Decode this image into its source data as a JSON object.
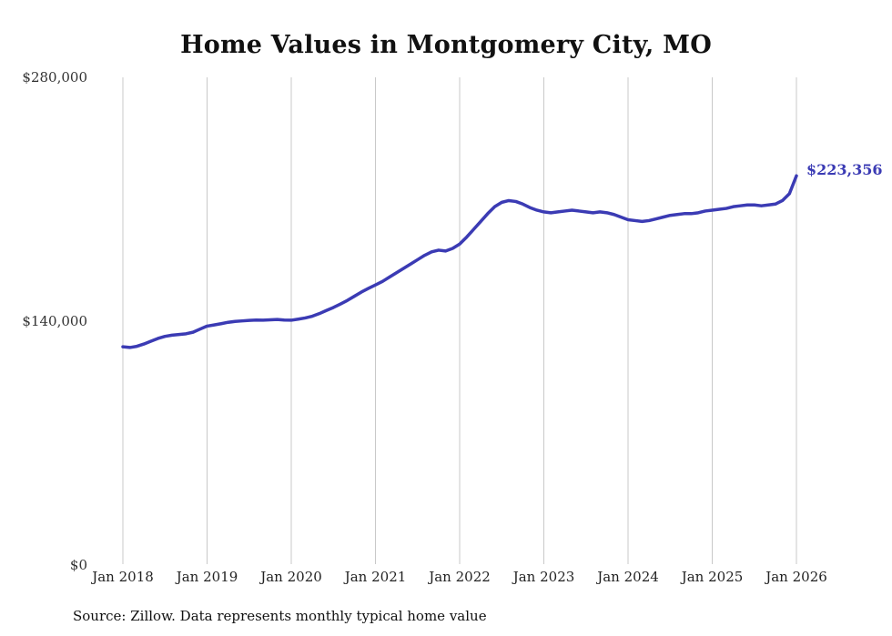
{
  "title": "Home Values in Montgomery City, MO",
  "source_note": "Source: Zillow. Data represents monthly typical home value",
  "colors": {
    "line": "#3b3bb4",
    "grid": "#c9c9c9",
    "axis_text": "#333333",
    "title_text": "#111111"
  },
  "chart_data": {
    "type": "line",
    "title": "Home Values in Montgomery City, MO",
    "xlabel": "",
    "ylabel": "",
    "ylim": [
      0,
      280000
    ],
    "grid": "vertical-only",
    "legend": "none",
    "x_tick_labels": [
      "Jan 2018",
      "Jan 2019",
      "Jan 2020",
      "Jan 2021",
      "Jan 2022",
      "Jan 2023",
      "Jan 2024",
      "Jan 2025",
      "Jan 2026"
    ],
    "y_ticks": [
      {
        "value": 0,
        "label": "$0"
      },
      {
        "value": 140000,
        "label": "$140,000"
      },
      {
        "value": 280000,
        "label": "$280,000"
      }
    ],
    "x_start": "Jan 2018",
    "x_end": "Jan 2026",
    "x_interval": "monthly",
    "last_value": 223356,
    "last_point_label": "$223,356",
    "series": [
      {
        "name": "Typical home value",
        "values": [
          125000,
          124600,
          125300,
          126600,
          128200,
          129800,
          131000,
          131700,
          132100,
          132500,
          133400,
          135200,
          136900,
          137600,
          138300,
          139100,
          139600,
          139900,
          140200,
          140400,
          140300,
          140500,
          140700,
          140400,
          140300,
          140900,
          141600,
          142600,
          144100,
          145900,
          147600,
          149600,
          151700,
          154100,
          156500,
          158600,
          160600,
          162600,
          165100,
          167600,
          170100,
          172600,
          175100,
          177600,
          179600,
          180600,
          180100,
          181600,
          184100,
          188100,
          192600,
          197100,
          201600,
          205600,
          208100,
          209100,
          208600,
          207100,
          205100,
          203600,
          202600,
          202100,
          202600,
          203100,
          203600,
          203100,
          202600,
          202100,
          202600,
          202100,
          201100,
          199600,
          198100,
          197600,
          197100,
          197600,
          198600,
          199600,
          200600,
          201100,
          201600,
          201600,
          202100,
          203100,
          203600,
          204100,
          204600,
          205600,
          206100,
          206600,
          206600,
          206100,
          206600,
          207100,
          209100,
          213100,
          223356
        ]
      }
    ]
  }
}
